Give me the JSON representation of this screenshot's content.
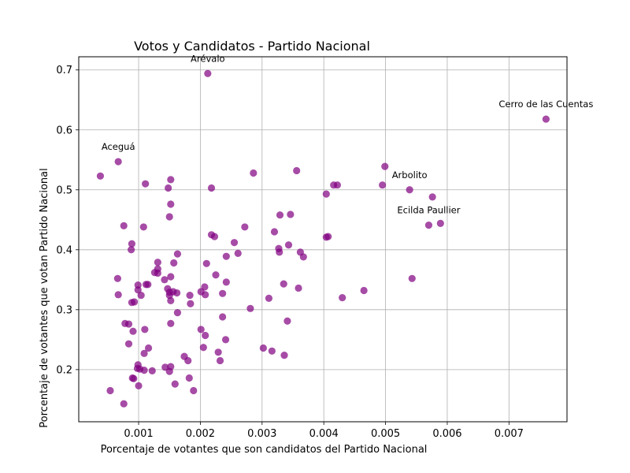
{
  "chart_data": {
    "type": "scatter",
    "title": "Votos y Candidatos - Partido Nacional",
    "xlabel": "Porcentaje de votantes que son candidatos del Partido Nacional",
    "ylabel": "Porcentaje de votantes que votan Partido Nacional",
    "xlim": [
      3e-05,
      0.00794
    ],
    "ylim": [
      0.113,
      0.722
    ],
    "xticks": [
      0.001,
      0.002,
      0.003,
      0.004,
      0.005,
      0.006,
      0.007
    ],
    "xtick_labels": [
      "0.001",
      "0.002",
      "0.003",
      "0.004",
      "0.005",
      "0.006",
      "0.007"
    ],
    "yticks": [
      0.2,
      0.3,
      0.4,
      0.5,
      0.6,
      0.7
    ],
    "ytick_labels": [
      "0.2",
      "0.3",
      "0.4",
      "0.5",
      "0.6",
      "0.7"
    ],
    "grid": true,
    "marker_color": "#800080",
    "points": [
      {
        "x": 0.00212,
        "y": 0.694
      },
      {
        "x": 0.0076,
        "y": 0.618
      },
      {
        "x": 0.00038,
        "y": 0.523
      },
      {
        "x": 0.00067,
        "y": 0.547
      },
      {
        "x": 0.00539,
        "y": 0.5
      },
      {
        "x": 0.0057,
        "y": 0.441
      },
      {
        "x": 0.00286,
        "y": 0.528
      },
      {
        "x": 0.00356,
        "y": 0.532
      },
      {
        "x": 0.00499,
        "y": 0.539
      },
      {
        "x": 0.00111,
        "y": 0.51
      },
      {
        "x": 0.00152,
        "y": 0.517
      },
      {
        "x": 0.00148,
        "y": 0.503
      },
      {
        "x": 0.00218,
        "y": 0.503
      },
      {
        "x": 0.00416,
        "y": 0.508
      },
      {
        "x": 0.00422,
        "y": 0.508
      },
      {
        "x": 0.00495,
        "y": 0.508
      },
      {
        "x": 0.00404,
        "y": 0.493
      },
      {
        "x": 0.00576,
        "y": 0.488
      },
      {
        "x": 0.00152,
        "y": 0.476
      },
      {
        "x": 0.00329,
        "y": 0.458
      },
      {
        "x": 0.00346,
        "y": 0.459
      },
      {
        "x": 0.0015,
        "y": 0.455
      },
      {
        "x": 0.00589,
        "y": 0.444
      },
      {
        "x": 0.00076,
        "y": 0.44
      },
      {
        "x": 0.00108,
        "y": 0.438
      },
      {
        "x": 0.00272,
        "y": 0.438
      },
      {
        "x": 0.0032,
        "y": 0.43
      },
      {
        "x": 0.00218,
        "y": 0.425
      },
      {
        "x": 0.00223,
        "y": 0.422
      },
      {
        "x": 0.00404,
        "y": 0.421
      },
      {
        "x": 0.00407,
        "y": 0.422
      },
      {
        "x": 0.00255,
        "y": 0.412
      },
      {
        "x": 0.00089,
        "y": 0.41
      },
      {
        "x": 0.00343,
        "y": 0.408
      },
      {
        "x": 0.00327,
        "y": 0.402
      },
      {
        "x": 0.00088,
        "y": 0.4
      },
      {
        "x": 0.00328,
        "y": 0.396
      },
      {
        "x": 0.00362,
        "y": 0.396
      },
      {
        "x": 0.00163,
        "y": 0.393
      },
      {
        "x": 0.00261,
        "y": 0.394
      },
      {
        "x": 0.00242,
        "y": 0.389
      },
      {
        "x": 0.00367,
        "y": 0.388
      },
      {
        "x": 0.00131,
        "y": 0.379
      },
      {
        "x": 0.00157,
        "y": 0.378
      },
      {
        "x": 0.0021,
        "y": 0.377
      },
      {
        "x": 0.00131,
        "y": 0.368
      },
      {
        "x": 0.00126,
        "y": 0.362
      },
      {
        "x": 0.00131,
        "y": 0.361
      },
      {
        "x": 0.00225,
        "y": 0.358
      },
      {
        "x": 0.00152,
        "y": 0.355
      },
      {
        "x": 0.00066,
        "y": 0.352
      },
      {
        "x": 0.00142,
        "y": 0.35
      },
      {
        "x": 0.00543,
        "y": 0.352
      },
      {
        "x": 0.00242,
        "y": 0.346
      },
      {
        "x": 0.00335,
        "y": 0.343
      },
      {
        "x": 0.00112,
        "y": 0.342
      },
      {
        "x": 0.00115,
        "y": 0.342
      },
      {
        "x": 0.00099,
        "y": 0.341
      },
      {
        "x": 0.00207,
        "y": 0.338
      },
      {
        "x": 0.00147,
        "y": 0.335
      },
      {
        "x": 0.00359,
        "y": 0.336
      },
      {
        "x": 0.00099,
        "y": 0.333
      },
      {
        "x": 0.00156,
        "y": 0.33
      },
      {
        "x": 0.0015,
        "y": 0.329
      },
      {
        "x": 0.00162,
        "y": 0.328
      },
      {
        "x": 0.00201,
        "y": 0.33
      },
      {
        "x": 0.00236,
        "y": 0.327
      },
      {
        "x": 0.00465,
        "y": 0.332
      },
      {
        "x": 0.00067,
        "y": 0.325
      },
      {
        "x": 0.00104,
        "y": 0.324
      },
      {
        "x": 0.0015,
        "y": 0.324
      },
      {
        "x": 0.00183,
        "y": 0.324
      },
      {
        "x": 0.00208,
        "y": 0.325
      },
      {
        "x": 0.00311,
        "y": 0.319
      },
      {
        "x": 0.0043,
        "y": 0.32
      },
      {
        "x": 0.00152,
        "y": 0.315
      },
      {
        "x": 0.00089,
        "y": 0.312
      },
      {
        "x": 0.00093,
        "y": 0.313
      },
      {
        "x": 0.00184,
        "y": 0.31
      },
      {
        "x": 0.00281,
        "y": 0.302
      },
      {
        "x": 0.00163,
        "y": 0.295
      },
      {
        "x": 0.00236,
        "y": 0.288
      },
      {
        "x": 0.00341,
        "y": 0.281
      },
      {
        "x": 0.00078,
        "y": 0.277
      },
      {
        "x": 0.00084,
        "y": 0.276
      },
      {
        "x": 0.00152,
        "y": 0.277
      },
      {
        "x": 0.0011,
        "y": 0.267
      },
      {
        "x": 0.00201,
        "y": 0.267
      },
      {
        "x": 0.00091,
        "y": 0.264
      },
      {
        "x": 0.00208,
        "y": 0.257
      },
      {
        "x": 0.00241,
        "y": 0.25
      },
      {
        "x": 0.00084,
        "y": 0.243
      },
      {
        "x": 0.00116,
        "y": 0.236
      },
      {
        "x": 0.00205,
        "y": 0.237
      },
      {
        "x": 0.00302,
        "y": 0.236
      },
      {
        "x": 0.00316,
        "y": 0.231
      },
      {
        "x": 0.00109,
        "y": 0.227
      },
      {
        "x": 0.00229,
        "y": 0.229
      },
      {
        "x": 0.00336,
        "y": 0.224
      },
      {
        "x": 0.00174,
        "y": 0.222
      },
      {
        "x": 0.0018,
        "y": 0.215
      },
      {
        "x": 0.00232,
        "y": 0.215
      },
      {
        "x": 0.00099,
        "y": 0.208
      },
      {
        "x": 0.00098,
        "y": 0.202
      },
      {
        "x": 0.00143,
        "y": 0.204
      },
      {
        "x": 0.00152,
        "y": 0.205
      },
      {
        "x": 0.00102,
        "y": 0.201
      },
      {
        "x": 0.00109,
        "y": 0.199
      },
      {
        "x": 0.00122,
        "y": 0.198
      },
      {
        "x": 0.0015,
        "y": 0.197
      },
      {
        "x": 0.0009,
        "y": 0.186
      },
      {
        "x": 0.00092,
        "y": 0.185
      },
      {
        "x": 0.00182,
        "y": 0.186
      },
      {
        "x": 0.00159,
        "y": 0.176
      },
      {
        "x": 0.001,
        "y": 0.173
      },
      {
        "x": 0.00054,
        "y": 0.165
      },
      {
        "x": 0.00189,
        "y": 0.165
      },
      {
        "x": 0.00076,
        "y": 0.143
      }
    ],
    "annotations": [
      {
        "text": "Arévalo",
        "x": 0.00212,
        "y": 0.694
      },
      {
        "text": "Cerro de las Cuentas",
        "x": 0.0076,
        "y": 0.618
      },
      {
        "text": "Aceguá",
        "x": 0.00067,
        "y": 0.547
      },
      {
        "text": "Arbolito",
        "x": 0.00539,
        "y": 0.5
      },
      {
        "text": "Ecilda Paullier",
        "x": 0.0057,
        "y": 0.441
      }
    ]
  }
}
